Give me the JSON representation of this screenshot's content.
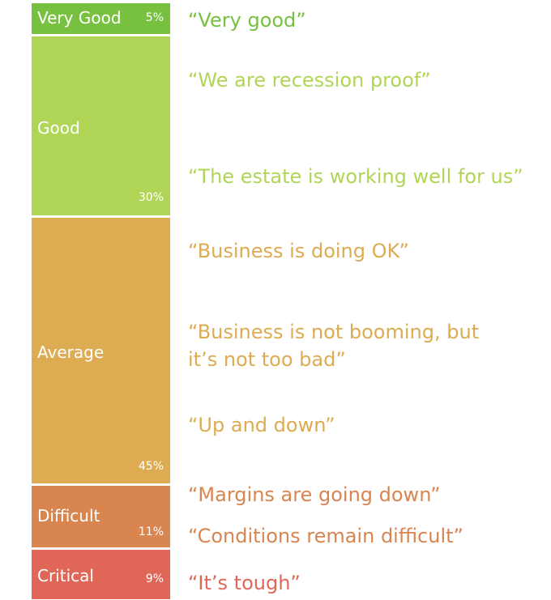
{
  "chart_data": {
    "type": "bar",
    "categories": [
      "Very Good",
      "Good",
      "Average",
      "Difficult",
      "Critical"
    ],
    "values": [
      5,
      30,
      45,
      11,
      9
    ],
    "value_labels": [
      "5%",
      "30%",
      "45%",
      "11%",
      "9%"
    ],
    "colors": [
      "#78c040",
      "#b1d556",
      "#dcab52",
      "#d88550",
      "#e06757"
    ],
    "quotes": [
      {
        "category": "Very Good",
        "text": "“Very good”"
      },
      {
        "category": "Good",
        "text": "“We are recession proof”"
      },
      {
        "category": "Good",
        "text": "“The estate is working well for us”"
      },
      {
        "category": "Average",
        "text": "“Business is doing OK”"
      },
      {
        "category": "Average",
        "text": "“Business is not booming, but"
      },
      {
        "category": "Average",
        "text": "it’s not too bad”"
      },
      {
        "category": "Average",
        "text": "“Up and down”"
      },
      {
        "category": "Difficult",
        "text": "“Margins are going down”"
      },
      {
        "category": "Difficult",
        "text": "“Conditions remain difficult”"
      },
      {
        "category": "Critical",
        "text": "“It’s tough”"
      }
    ]
  }
}
